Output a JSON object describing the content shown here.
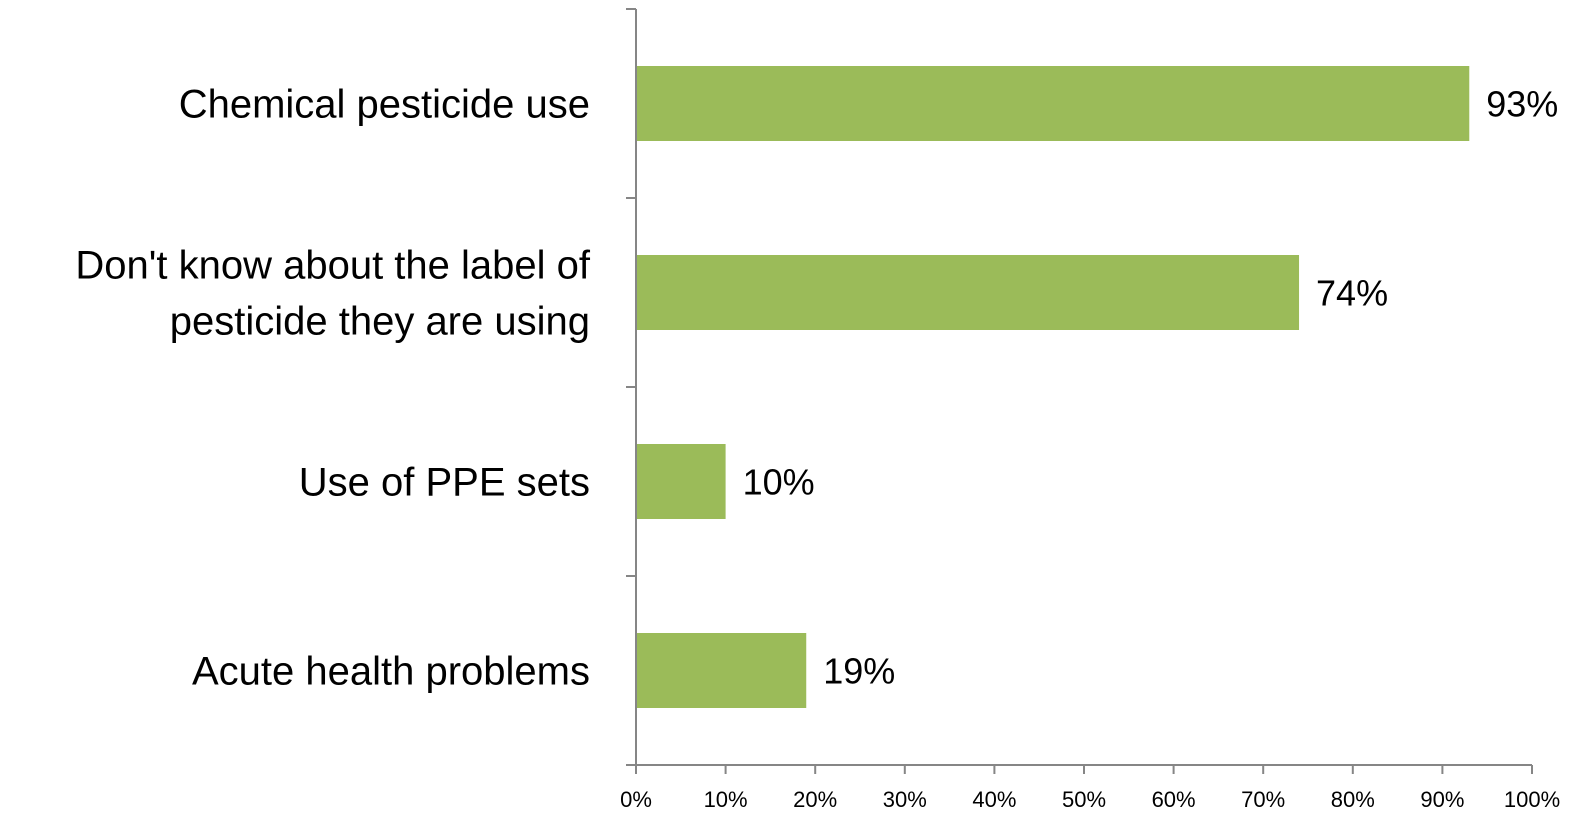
{
  "chart_data": {
    "type": "bar",
    "orientation": "horizontal",
    "categories": [
      "Chemical pesticide use",
      "Don't know about the label of pesticide they are using",
      "Use of PPE sets",
      "Acute health problems"
    ],
    "category_lines": [
      [
        "Chemical pesticide use"
      ],
      [
        "Don't know about the label of",
        "pesticide they are using"
      ],
      [
        "Use of PPE sets"
      ],
      [
        "Acute health problems"
      ]
    ],
    "values": [
      93,
      74,
      10,
      19
    ],
    "data_labels": [
      "93%",
      "74%",
      "10%",
      "19%"
    ],
    "xlim": [
      0,
      100
    ],
    "x_ticks": [
      0,
      10,
      20,
      30,
      40,
      50,
      60,
      70,
      80,
      90,
      100
    ],
    "x_tick_labels": [
      "0%",
      "10%",
      "20%",
      "30%",
      "40%",
      "50%",
      "60%",
      "70%",
      "80%",
      "90%",
      "100%"
    ],
    "title": "",
    "xlabel": "",
    "ylabel": "",
    "grid": false,
    "legend": "none",
    "bar_color": "#9BBB59",
    "axis_color": "#868686"
  }
}
